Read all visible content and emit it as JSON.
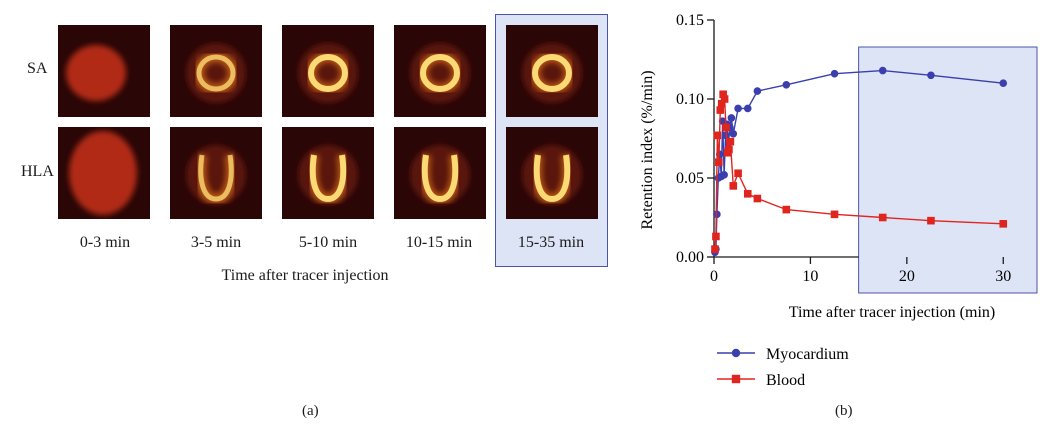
{
  "panel_a": {
    "row_labels": [
      "SA",
      "HLA"
    ],
    "time_labels": [
      "0-3 min",
      "3-5 min",
      "5-10 min",
      "10-15 min",
      "15-35 min"
    ],
    "highlighted_index": 4,
    "x_title": "Time after tracer injection",
    "caption": "(a)",
    "highlight_color": "#dde4f6",
    "tile_colors": {
      "background": "#2a0606",
      "glow": "#ff8a1a",
      "core": "#ffe07a"
    }
  },
  "panel_b": {
    "caption": "(b)"
  },
  "chart_data": {
    "type": "line",
    "xlabel": "Time after tracer injection (min)",
    "ylabel": "Retention index (%/min)",
    "xlim": [
      0,
      33.5
    ],
    "ylim": [
      0,
      0.15
    ],
    "x_ticks": [
      0,
      10,
      20,
      30
    ],
    "y_ticks": [
      "0.00",
      "0.05",
      "0.10",
      "0.15"
    ],
    "highlight_range": [
      15,
      33.5
    ],
    "highlight_color": "#dde4f6",
    "legend_position": "below",
    "series": [
      {
        "name": "Myocardium",
        "color": "#3b3fae",
        "marker": "circle",
        "x": [
          0.1,
          0.2,
          0.3,
          0.45,
          0.6,
          0.75,
          0.9,
          1.05,
          1.2,
          1.35,
          1.5,
          1.65,
          1.8,
          2.0,
          2.5,
          3.5,
          4.5,
          7.5,
          12.5,
          17.5,
          22.5,
          30
        ],
        "y": [
          0.003,
          0.005,
          0.027,
          0.05,
          0.065,
          0.051,
          0.086,
          0.052,
          0.077,
          0.084,
          0.072,
          0.082,
          0.088,
          0.078,
          0.094,
          0.094,
          0.105,
          0.109,
          0.116,
          0.118,
          0.115,
          0.11
        ]
      },
      {
        "name": "Blood",
        "color": "#e0251f",
        "marker": "square",
        "x": [
          0.1,
          0.2,
          0.35,
          0.5,
          0.65,
          0.8,
          0.95,
          1.1,
          1.25,
          1.4,
          1.55,
          1.7,
          2.0,
          2.5,
          3.5,
          4.5,
          7.5,
          12.5,
          17.5,
          22.5,
          30
        ],
        "y": [
          0.005,
          0.013,
          0.077,
          0.06,
          0.093,
          0.097,
          0.103,
          0.1,
          0.082,
          0.066,
          0.068,
          0.073,
          0.045,
          0.053,
          0.04,
          0.037,
          0.03,
          0.027,
          0.025,
          0.023,
          0.021
        ]
      }
    ]
  }
}
